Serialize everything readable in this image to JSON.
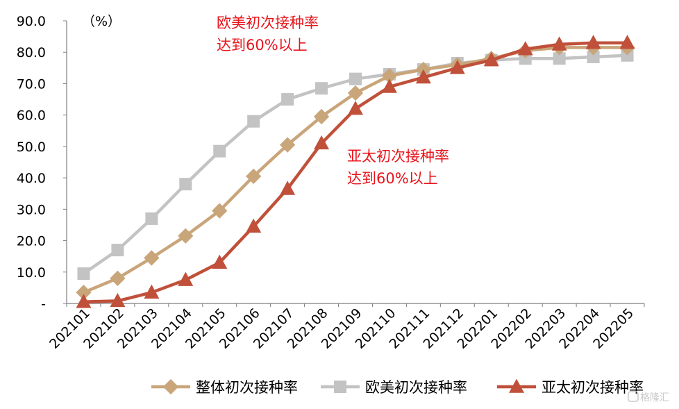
{
  "chart_data": {
    "type": "line",
    "categories": [
      "202101",
      "202102",
      "202103",
      "202104",
      "202105",
      "202106",
      "202107",
      "202108",
      "202109",
      "202110",
      "202111",
      "202112",
      "202201",
      "202202",
      "202203",
      "202204",
      "202205"
    ],
    "ylim": [
      0,
      90
    ],
    "yticks": [
      0,
      10,
      20,
      30,
      40,
      50,
      60,
      70,
      80,
      90
    ],
    "ytick_labels": [
      "-",
      "10.0",
      "20.0",
      "30.0",
      "40.0",
      "50.0",
      "60.0",
      "70.0",
      "80.0",
      "90.0"
    ],
    "unit_label": "（%）",
    "grid": false,
    "legend_position": "bottom",
    "series": [
      {
        "name": "整体初次接种率",
        "color": "#c9a57a",
        "marker": "diamond",
        "values": [
          3.5,
          8,
          14.5,
          21.5,
          29.5,
          40.5,
          50.5,
          59.5,
          67,
          72.5,
          74.5,
          76,
          78,
          80.5,
          81.5,
          81.5,
          81.5
        ]
      },
      {
        "name": "欧美初次接种率",
        "color": "#c3c3c3",
        "marker": "square",
        "values": [
          9.5,
          17,
          27,
          38,
          48.5,
          58,
          65,
          68.5,
          71.5,
          73,
          74.5,
          76.5,
          77.5,
          78,
          78,
          78.5,
          79
        ]
      },
      {
        "name": "亚太初次接种率",
        "color": "#c0503a",
        "marker": "triangle",
        "values": [
          0.5,
          0.8,
          3.5,
          7.5,
          13,
          24.5,
          36.5,
          51,
          62,
          69,
          72,
          75,
          77.5,
          81,
          82.5,
          83,
          83
        ]
      }
    ],
    "annotations": [
      {
        "lines": [
          "欧美初次接种率",
          "达到60%以上"
        ]
      },
      {
        "lines": [
          "亚太初次接种率",
          "达到60%以上"
        ]
      }
    ]
  },
  "watermark": "格隆汇"
}
